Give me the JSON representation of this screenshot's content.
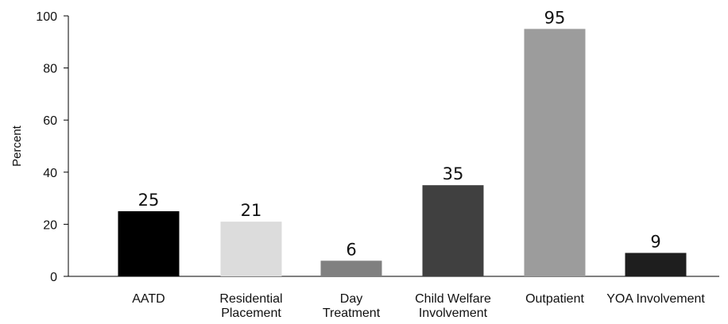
{
  "chart_data": {
    "type": "bar",
    "categories": [
      [
        "AATD"
      ],
      [
        "Residential",
        "Placement"
      ],
      [
        "Day",
        "Treatment"
      ],
      [
        "Child Welfare",
        "Involvement"
      ],
      [
        "Outpatient"
      ],
      [
        "YOA Involvement"
      ]
    ],
    "values": [
      25,
      21,
      6,
      35,
      95,
      9
    ],
    "value_labels": [
      "25",
      "21",
      "6",
      "35",
      "95",
      "9"
    ],
    "colors": [
      "#000000",
      "#dcdcdc",
      "#808080",
      "#404040",
      "#9c9c9c",
      "#1e1e1e"
    ],
    "ylabel": "Percent",
    "ylim": [
      0,
      100
    ],
    "yticks": [
      0,
      20,
      40,
      60,
      80,
      100
    ],
    "grid": false,
    "legend": "none"
  }
}
